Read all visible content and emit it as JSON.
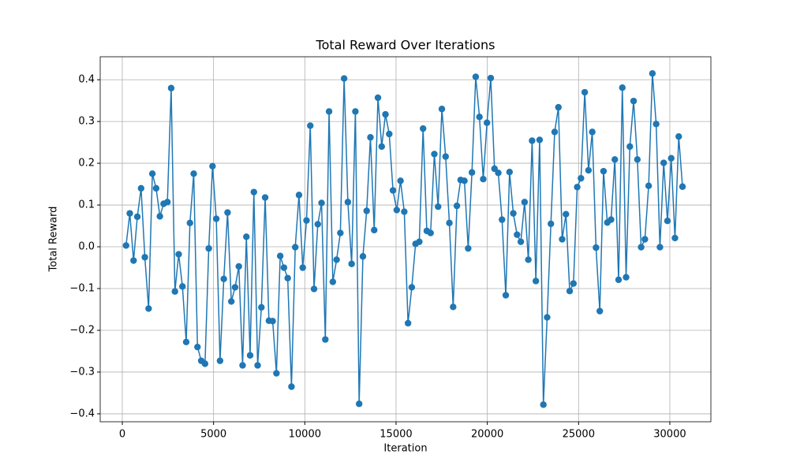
{
  "chart_data": {
    "type": "line",
    "title": "Total Reward Over Iterations",
    "x_label": "Iteration",
    "y_label": "Total Reward",
    "x": [
      206,
      412,
      618,
      824,
      1030,
      1236,
      1442,
      1648,
      1854,
      2060,
      2266,
      2472,
      2678,
      2884,
      3090,
      3296,
      3502,
      3708,
      3914,
      4120,
      4326,
      4532,
      4738,
      4944,
      5150,
      5356,
      5562,
      5768,
      5974,
      6180,
      6386,
      6592,
      6798,
      7004,
      7210,
      7416,
      7622,
      7828,
      8034,
      8240,
      8446,
      8652,
      8858,
      9064,
      9270,
      9476,
      9682,
      9888,
      10094,
      10300,
      10506,
      10712,
      10918,
      11124,
      11330,
      11536,
      11742,
      11948,
      12154,
      12360,
      12566,
      12772,
      12978,
      13184,
      13390,
      13596,
      13802,
      14008,
      14214,
      14420,
      14626,
      14832,
      15038,
      15244,
      15450,
      15656,
      15862,
      16068,
      16274,
      16480,
      16686,
      16892,
      17098,
      17304,
      17510,
      17716,
      17922,
      18128,
      18334,
      18540,
      18746,
      18952,
      19158,
      19364,
      19570,
      19776,
      19982,
      20188,
      20394,
      20600,
      20806,
      21012,
      21218,
      21424,
      21630,
      21836,
      22042,
      22248,
      22454,
      22660,
      22866,
      23072,
      23278,
      23484,
      23690,
      23896,
      24102,
      24308,
      24514,
      24720,
      24926,
      25132,
      25338,
      25544,
      25750,
      25956,
      26162,
      26368,
      26574,
      26780,
      26986,
      27192,
      27398,
      27604,
      27810,
      28016,
      28222,
      28428,
      28634,
      28840,
      29046,
      29252,
      29458,
      29664,
      29870,
      30076,
      30282,
      30488,
      30694
    ],
    "series": [
      {
        "color": "#1f77b4",
        "values": [
          0.003,
          0.08,
          -0.033,
          0.072,
          0.14,
          -0.025,
          -0.148,
          0.175,
          0.14,
          0.073,
          0.103,
          0.107,
          0.38,
          -0.107,
          -0.018,
          -0.095,
          -0.228,
          0.057,
          0.175,
          -0.24,
          -0.273,
          -0.28,
          -0.004,
          0.193,
          0.067,
          -0.273,
          -0.077,
          0.082,
          -0.131,
          -0.097,
          -0.047,
          -0.284,
          0.024,
          -0.26,
          0.131,
          -0.284,
          -0.145,
          0.118,
          -0.177,
          -0.178,
          -0.303,
          -0.022,
          -0.05,
          -0.075,
          -0.335,
          -0.001,
          0.124,
          -0.05,
          0.063,
          0.29,
          -0.101,
          0.054,
          0.105,
          -0.222,
          0.324,
          -0.084,
          -0.031,
          0.033,
          0.403,
          0.107,
          -0.041,
          0.324,
          -0.376,
          -0.023,
          0.086,
          0.262,
          0.04,
          0.357,
          0.24,
          0.317,
          0.27,
          0.135,
          0.088,
          0.158,
          0.084,
          -0.183,
          -0.097,
          0.007,
          0.012,
          0.283,
          0.038,
          0.033,
          0.222,
          0.096,
          0.33,
          0.216,
          0.057,
          -0.144,
          0.098,
          0.16,
          0.158,
          -0.004,
          0.178,
          0.407,
          0.311,
          0.162,
          0.297,
          0.404,
          0.187,
          0.177,
          0.065,
          -0.116,
          0.179,
          0.08,
          0.029,
          0.012,
          0.107,
          -0.031,
          0.254,
          -0.082,
          0.256,
          -0.378,
          -0.169,
          0.055,
          0.275,
          0.334,
          0.018,
          0.078,
          -0.106,
          -0.088,
          0.143,
          0.164,
          0.37,
          0.183,
          0.275,
          -0.002,
          -0.154,
          0.181,
          0.058,
          0.065,
          0.209,
          -0.079,
          0.381,
          -0.073,
          0.24,
          0.349,
          0.209,
          -0.001,
          0.018,
          0.146,
          0.415,
          0.294,
          -0.001,
          0.201,
          0.062,
          0.212,
          0.021,
          0.264,
          0.144
        ]
      }
    ],
    "xlim": [
      -1210,
      32250
    ],
    "ylim": [
      -0.419,
      0.455
    ],
    "xticks": [
      0,
      5000,
      10000,
      15000,
      20000,
      25000,
      30000
    ],
    "yticks": [
      {
        "value": -0.4,
        "label": "−0.4"
      },
      {
        "value": -0.3,
        "label": "−0.3"
      },
      {
        "value": -0.2,
        "label": "−0.2"
      },
      {
        "value": -0.1,
        "label": "−0.1"
      },
      {
        "value": 0,
        "label": "0.0"
      },
      0.1,
      0.2,
      0.3,
      0.4
    ],
    "grid": true
  }
}
